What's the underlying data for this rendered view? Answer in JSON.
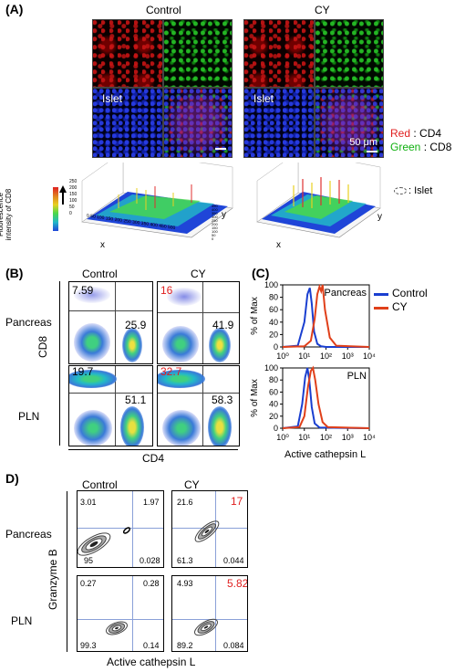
{
  "panelA": {
    "label": "(A)",
    "control_title": "Control",
    "cy_title": "CY",
    "islet_label": "Islet",
    "scale_bar": "50 μm",
    "legend": [
      {
        "color_word": "Red",
        "sep": " : ",
        "marker": "CD4",
        "color": "#e02020"
      },
      {
        "color_word": "Green",
        "sep": " : ",
        "marker": "CD8",
        "color": "#10b010"
      }
    ],
    "islet_legend": ": Islet",
    "surface_ylabel": "Fluorescence\nintensity of CD8",
    "surface_zticks": [
      "250",
      "200",
      "150",
      "100",
      "50",
      "0"
    ],
    "surface_xlabel": "x",
    "surface_ylabel2": "y",
    "surface_xticks": [
      "0",
      "50",
      "100",
      "150",
      "200",
      "250",
      "300",
      "350",
      "400",
      "450",
      "500"
    ],
    "surface_yticks": [
      "0",
      "50",
      "100",
      "150",
      "200",
      "250",
      "300",
      "350",
      "400",
      "450"
    ]
  },
  "panelB": {
    "label": "(B)",
    "col_control": "Control",
    "col_cy": "CY",
    "row_pancreas": "Pancreas",
    "row_pln": "PLN",
    "ylabel": "CD8",
    "xlabel": "CD4",
    "plots": [
      {
        "tl": "7.59",
        "br": "25.9",
        "tl_red": false
      },
      {
        "tl": "16",
        "br": "41.9",
        "tl_red": true
      },
      {
        "tl": "19.7",
        "br": "51.1",
        "tl_red": false
      },
      {
        "tl": "32.7",
        "br": "58.3",
        "tl_red": true
      }
    ],
    "text_red": "#e02020"
  },
  "panelC": {
    "label": "(C)",
    "legend": [
      {
        "name": "Control",
        "color": "#1a3fd0"
      },
      {
        "name": "CY",
        "color": "#e0401a"
      }
    ],
    "ylabel": "% of Max",
    "xlabel": "Active cathepsin L",
    "chart_data": [
      {
        "type": "line",
        "title": "Pancreas",
        "ylabel": "% of Max",
        "xlabel": "",
        "ylim": [
          0,
          100
        ],
        "yticks": [
          "0",
          "20",
          "40",
          "60",
          "80",
          "100"
        ],
        "xticks": [
          "10⁰",
          "10¹",
          "10²",
          "10³",
          "10⁴"
        ],
        "log_x": true,
        "series": [
          {
            "name": "Control",
            "x": [
              1,
              5,
              10,
              14,
              18,
              22,
              28,
              40,
              60,
              100,
              10000
            ],
            "values": [
              0,
              2,
              40,
              85,
              95,
              70,
              25,
              5,
              1,
              0,
              0
            ]
          },
          {
            "name": "CY",
            "x": [
              1,
              10,
              20,
              30,
              40,
              50,
              60,
              70,
              90,
              150,
              300,
              10000
            ],
            "values": [
              0,
              1,
              10,
              45,
              85,
              97,
              90,
              100,
              60,
              15,
              2,
              0
            ]
          }
        ]
      },
      {
        "type": "line",
        "title": "PLN",
        "ylabel": "% of Max",
        "xlabel": "Active cathepsin L",
        "ylim": [
          0,
          100
        ],
        "yticks": [
          "0",
          "20",
          "40",
          "60",
          "80",
          "100"
        ],
        "xticks": [
          "10⁰",
          "10¹",
          "10²",
          "10³",
          "10⁴"
        ],
        "log_x": true,
        "series": [
          {
            "name": "Control",
            "x": [
              1,
              5,
              8,
              11,
              14,
              17,
              22,
              30,
              50,
              10000
            ],
            "values": [
              0,
              3,
              40,
              85,
              100,
              80,
              35,
              8,
              1,
              0
            ]
          },
          {
            "name": "CY",
            "x": [
              1,
              6,
              10,
              15,
              20,
              25,
              32,
              45,
              70,
              120,
              10000
            ],
            "values": [
              0,
              2,
              20,
              70,
              95,
              100,
              80,
              40,
              10,
              2,
              0
            ]
          }
        ]
      }
    ]
  },
  "panelD": {
    "label": "D)",
    "col_control": "Control",
    "col_cy": "CY",
    "row_pancreas": "Pancreas",
    "row_pln": "PLN",
    "ylabel": "Granzyme B",
    "xlabel": "Active cathepsin L",
    "plots": [
      {
        "tl": "3.01",
        "tr": "1.97",
        "bl": "95",
        "br": "0.028",
        "tr_red": false
      },
      {
        "tl": "21.6",
        "tr": "17",
        "bl": "61.3",
        "br": "0.044",
        "tr_red": true
      },
      {
        "tl": "0.27",
        "tr": "0.28",
        "bl": "99.3",
        "br": "0.14",
        "tr_red": false
      },
      {
        "tl": "4.93",
        "tr": "5.82",
        "bl": "89.2",
        "br": "0.084",
        "tr_red": true
      }
    ]
  }
}
